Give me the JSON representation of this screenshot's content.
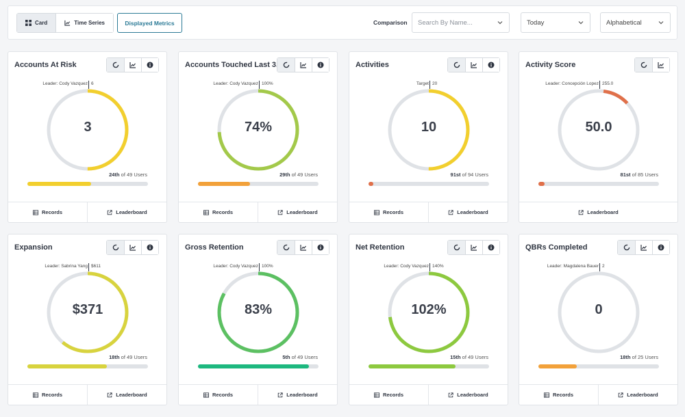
{
  "toolbar": {
    "view_card": "Card",
    "view_time_series": "Time Series",
    "displayed_metrics": "Displayed Metrics",
    "comparison_label": "Comparison",
    "search_placeholder": "Search By Name...",
    "period": "Today",
    "sort": "Alphabetical"
  },
  "footer": {
    "records": "Records",
    "leaderboard": "Leaderboard"
  },
  "cards": [
    {
      "title": "Accounts At Risk",
      "ref_label": "Leader: Cody Vazquez",
      "ref_value": "6",
      "value": "3",
      "rank": "24th",
      "rank_suffix": " of 49 Users",
      "gauge_fraction": 0.5,
      "gauge_start": 0,
      "gauge_color": "#f2cf2e",
      "bar_fraction": 0.53,
      "bar_color": "#f2cf2e",
      "show_info": true,
      "footer": [
        "records",
        "leaderboard"
      ]
    },
    {
      "title": "Accounts Touched Last 3...",
      "ref_label": "Leader: Cody Vazquez",
      "ref_value": "100%",
      "value": "74%",
      "rank": "29th",
      "rank_suffix": " of 49 Users",
      "gauge_fraction": 0.74,
      "gauge_start": 0,
      "gauge_color": "#a3c94a",
      "bar_fraction": 0.43,
      "bar_color": "#f2a13a",
      "show_info": true,
      "footer": [
        "records",
        "leaderboard"
      ]
    },
    {
      "title": "Activities",
      "ref_label": "Target",
      "ref_value": "20",
      "value": "10",
      "rank": "91st",
      "rank_suffix": " of 94 Users",
      "gauge_fraction": 0.5,
      "gauge_start": 0,
      "gauge_color": "#f2cf2e",
      "bar_fraction": 0.04,
      "bar_color": "#e0704a",
      "show_info": true,
      "footer": [
        "records",
        "leaderboard"
      ]
    },
    {
      "title": "Activity Score",
      "ref_label": "Leader: Concepción Lopez",
      "ref_value": "255.0",
      "value": "50.0",
      "rank": "81st",
      "rank_suffix": " of 85 Users",
      "gauge_fraction": 0.11,
      "gauge_start": 0.02,
      "gauge_color": "#e0704a",
      "bar_fraction": 0.05,
      "bar_color": "#e0704a",
      "show_info": false,
      "footer": [
        "leaderboard"
      ]
    },
    {
      "title": "Expansion",
      "ref_label": "Leader: Sabrina Yang",
      "ref_value": "$611",
      "value": "$371",
      "rank": "18th",
      "rank_suffix": " of 49 Users",
      "gauge_fraction": 0.61,
      "gauge_start": 0,
      "gauge_color": "#d8d33e",
      "bar_fraction": 0.66,
      "bar_color": "#d8d33e",
      "show_info": true,
      "footer": [
        "records",
        "leaderboard"
      ]
    },
    {
      "title": "Gross Retention",
      "ref_label": "Leader: Cody Vazquez",
      "ref_value": "100%",
      "value": "83%",
      "rank": "5th",
      "rank_suffix": " of 49 Users",
      "gauge_fraction": 0.83,
      "gauge_start": 0,
      "gauge_color": "#5cc062",
      "bar_fraction": 0.92,
      "bar_color": "#1db87f",
      "show_info": true,
      "footer": [
        "records",
        "leaderboard"
      ]
    },
    {
      "title": "Net Retention",
      "ref_label": "Leader: Cody Vazquez",
      "ref_value": "140%",
      "value": "102%",
      "rank": "15th",
      "rank_suffix": " of 49 Users",
      "gauge_fraction": 0.73,
      "gauge_start": 0,
      "gauge_color": "#8dc93f",
      "bar_fraction": 0.72,
      "bar_color": "#8dc93f",
      "show_info": true,
      "footer": [
        "records",
        "leaderboard"
      ]
    },
    {
      "title": "QBRs Completed",
      "ref_label": "Leader: Magdalena Bauer",
      "ref_value": "2",
      "value": "0",
      "rank": "18th",
      "rank_suffix": " of 25 Users",
      "gauge_fraction": 0,
      "gauge_start": 0,
      "gauge_color": "#f2a13a",
      "bar_fraction": 0.32,
      "bar_color": "#f2a13a",
      "show_info": true,
      "footer": [
        "records",
        "leaderboard"
      ]
    }
  ]
}
